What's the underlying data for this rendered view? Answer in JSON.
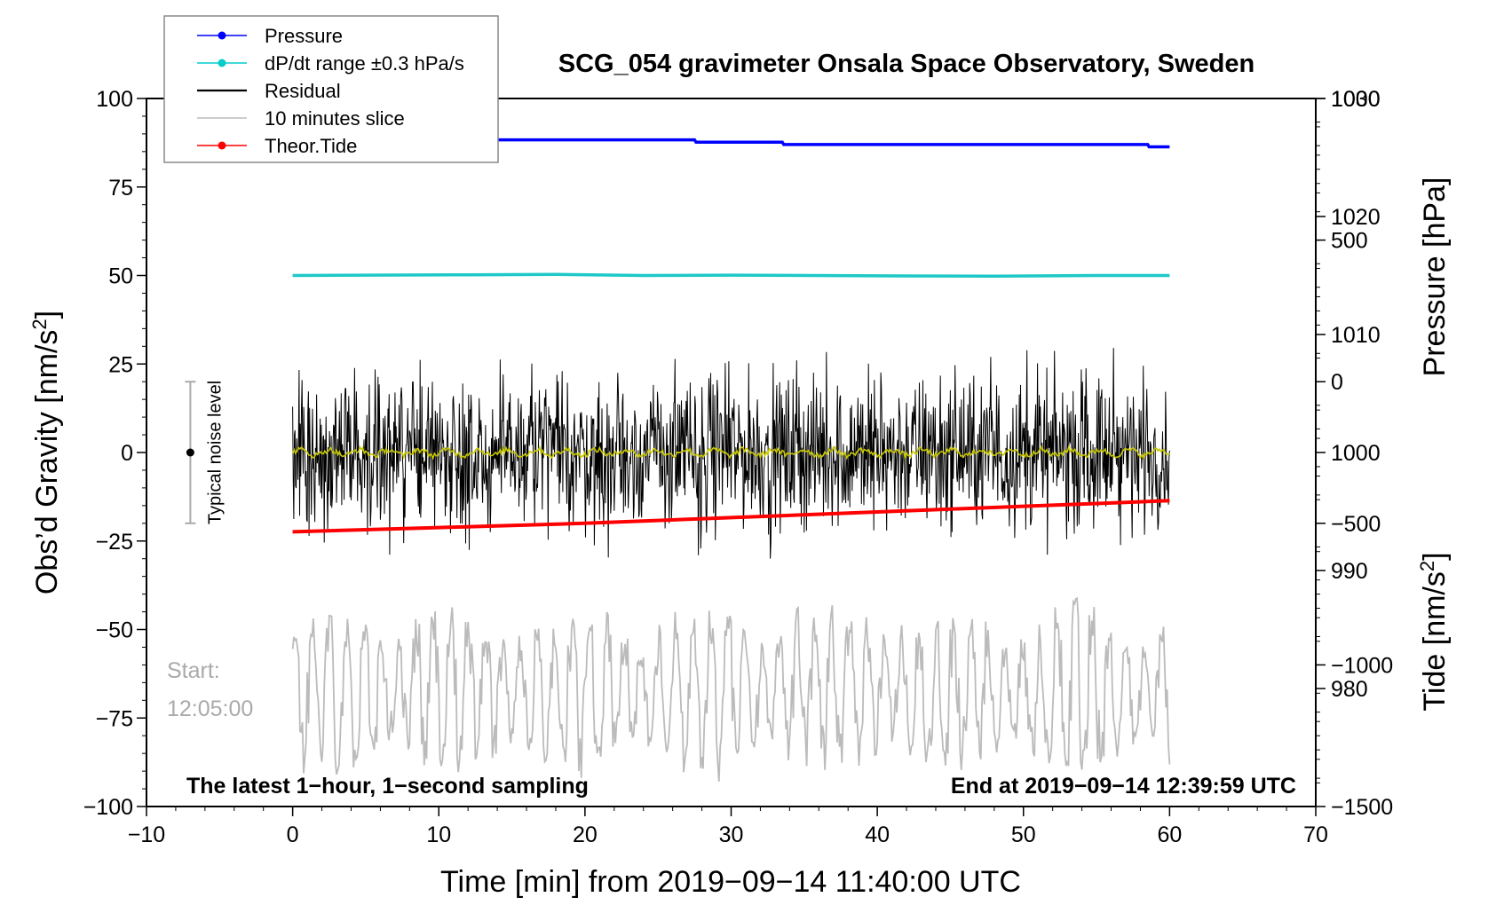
{
  "chart_data": {
    "type": "line",
    "title": "SCG_054 gravimeter Onsala Space Observatory, Sweden",
    "xlabel": "Time [min] from 2019−09−14 11:40:00 UTC",
    "ylabel_left": "Obs’d Gravity [nm/s",
    "ylabel_left_sup": "2",
    "ylabel_left_end": "]",
    "ylabel_right_pressure": "Pressure [hPa]",
    "ylabel_right_tide": "Tide [nm/s",
    "ylabel_right_tide_sup": "2",
    "ylabel_right_tide_end": "]",
    "xlim": [
      -10,
      70
    ],
    "ylim": [
      -100,
      100
    ],
    "pressure_range": [
      970,
      1030
    ],
    "tide_range": [
      -1500,
      1000
    ],
    "x_ticks": [
      "−10",
      "0",
      "10",
      "20",
      "30",
      "40",
      "50",
      "60",
      "70"
    ],
    "y_ticks": [
      "100",
      "75",
      "50",
      "25",
      "0",
      "−25",
      "−50",
      "−75",
      "−100"
    ],
    "pressure_ticks": [
      "1030",
      "1020",
      "1010",
      "1000",
      "990",
      "980"
    ],
    "tide_ticks": [
      "1000",
      "500",
      "0",
      "−500",
      "−1000",
      "−1500"
    ],
    "legend": [
      {
        "label": "Pressure",
        "color": "#0000ff",
        "marker": true
      },
      {
        "label": "dP/dt range ±0.3 hPa/s",
        "color": "#00cccc",
        "marker": true
      },
      {
        "label": "Residual",
        "color": "#000000",
        "marker": false
      },
      {
        "label": "10 minutes slice",
        "color": "#bbbbbb",
        "marker": false
      },
      {
        "label": "Theor.Tide",
        "color": "#ff0000",
        "marker": true
      }
    ],
    "series": [
      {
        "name": "Pressure",
        "axis": "pressure_hPa",
        "color": "#0000ff",
        "x": [
          0,
          27.5,
          27.6,
          33.5,
          33.6,
          58.5,
          58.6,
          60
        ],
        "values": [
          1026.5,
          1026.5,
          1026.3,
          1026.3,
          1026.1,
          1026.1,
          1025.9,
          1025.9
        ]
      },
      {
        "name": "dP/dt range ±0.3 hPa/s",
        "axis": "gravity",
        "color": "#1ec8c8",
        "x": [
          0,
          12,
          18,
          24,
          30,
          40,
          48,
          55,
          60
        ],
        "values": [
          50.0,
          50.2,
          50.3,
          50.0,
          50.1,
          49.9,
          49.8,
          50.0,
          50.0
        ]
      },
      {
        "name": "Residual",
        "axis": "gravity",
        "color": "#000000",
        "amplitude_typical": 8,
        "amplitude_max": 30,
        "x_range": [
          0,
          60
        ]
      },
      {
        "name": "Residual (smoothed)",
        "axis": "gravity",
        "color": "#c8c800",
        "x_range": [
          0,
          60
        ]
      },
      {
        "name": "10 minutes slice",
        "axis": "gravity",
        "color": "#bbbbbb",
        "offset": -67,
        "amplitude_max": 30,
        "x_range": [
          0,
          60
        ]
      },
      {
        "name": "Theor.Tide",
        "axis": "tide_nm_s2",
        "color": "#ff0000",
        "x": [
          0,
          10,
          20,
          30,
          40,
          50,
          60
        ],
        "values": [
          -530,
          -515,
          -500,
          -480,
          -460,
          -440,
          -420
        ]
      }
    ],
    "noise_bar": {
      "x": -7,
      "center": 0,
      "low": -20,
      "high": 20,
      "label": "Typical noise level"
    },
    "annotations": {
      "start_line1": "Start:",
      "start_line2": "12:05:00",
      "bottom_left": "The latest 1−hour, 1−second sampling",
      "bottom_right": "End at 2019−09−14 12:39:59 UTC"
    }
  }
}
